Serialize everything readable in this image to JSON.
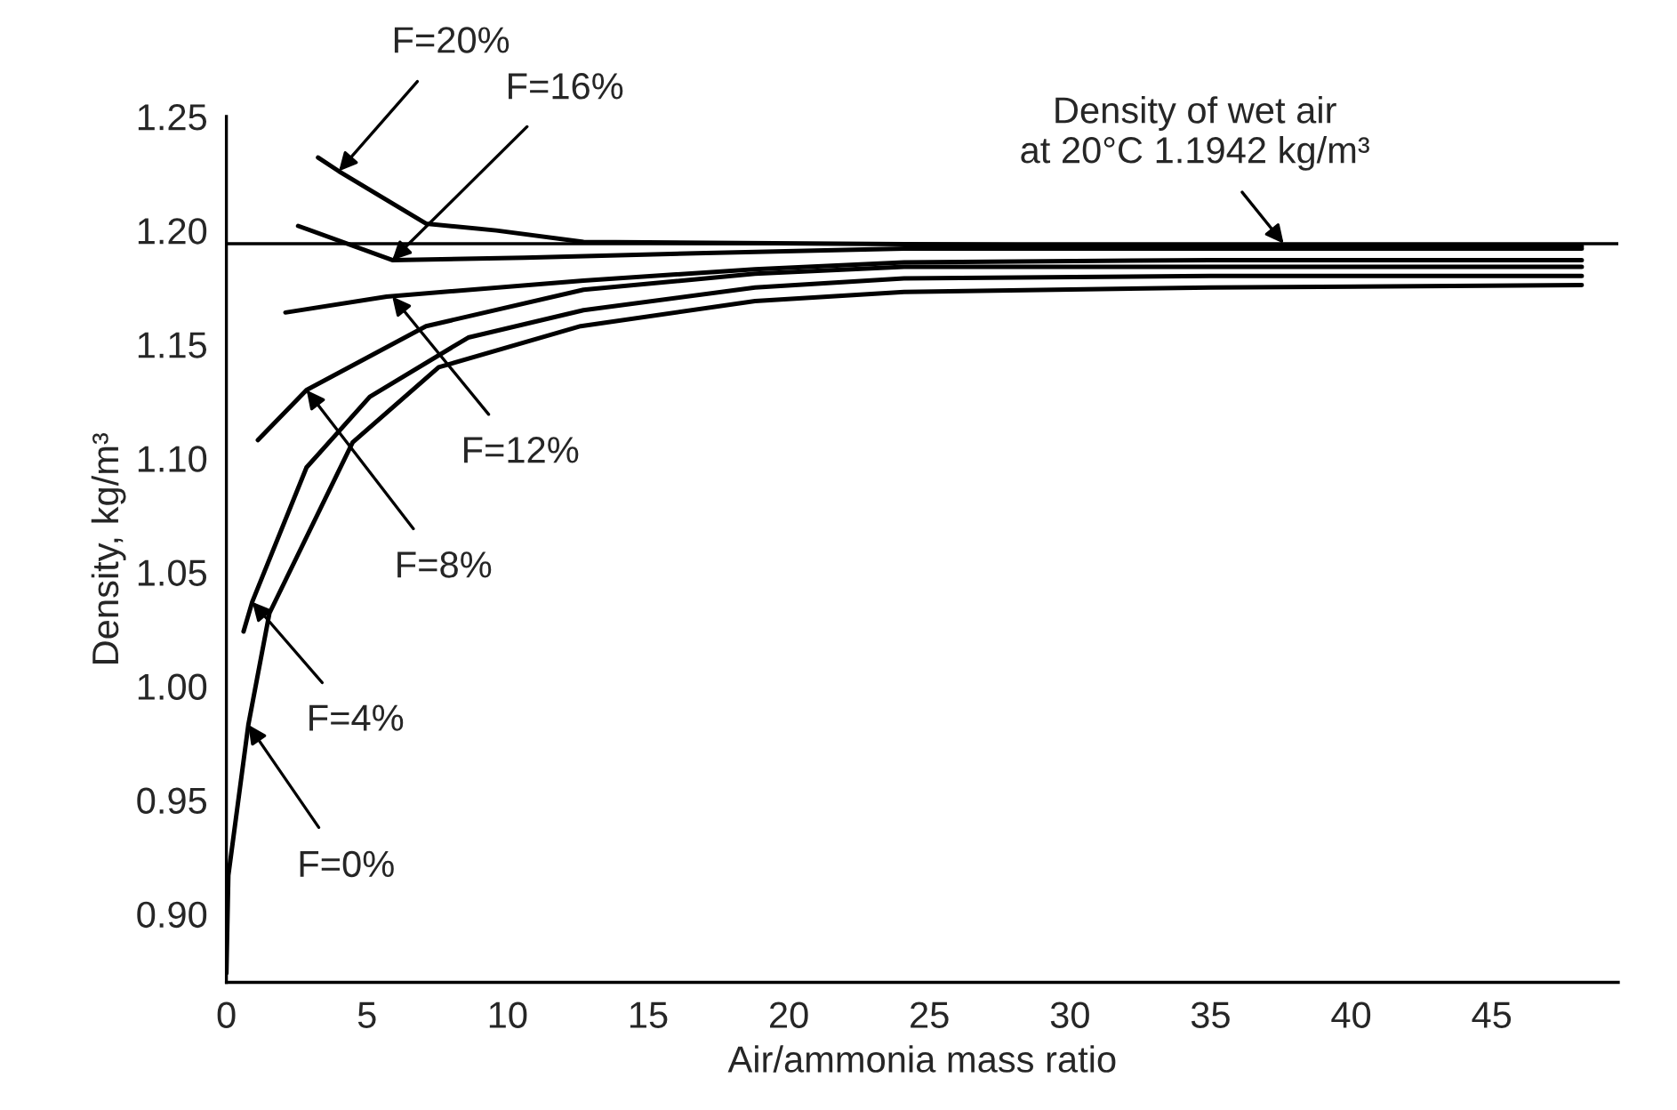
{
  "chart_data": {
    "type": "line",
    "xlabel": "Air/ammonia mass ratio",
    "ylabel": "Density, kg/m³",
    "xlim": [
      0,
      49.5
    ],
    "ylim": [
      0.87,
      1.25
    ],
    "xticks": [
      0,
      5,
      10,
      15,
      20,
      25,
      30,
      35,
      40,
      45
    ],
    "yticks": [
      {
        "value": 0.9,
        "label": "0.90"
      },
      {
        "value": 0.95,
        "label": "0.95"
      },
      {
        "value": 1.0,
        "label": "1.00"
      },
      {
        "value": 1.05,
        "label": "1.05"
      },
      {
        "value": 1.1,
        "label": "1.10"
      },
      {
        "value": 1.15,
        "label": "1.15"
      },
      {
        "value": 1.2,
        "label": "1.20"
      },
      {
        "value": 1.25,
        "label": "1.25"
      }
    ],
    "grid": false,
    "legend": false,
    "marker": "none",
    "line_style": "solid",
    "series": [
      {
        "color": "#000000",
        "x": [
          0,
          0.07,
          0.78,
          1.53,
          4.49,
          7.55,
          12.6,
          18.8,
          24.1,
          35,
          48.2
        ],
        "values": [
          0.874,
          0.917,
          0.983,
          1.032,
          1.107,
          1.14,
          1.158,
          1.169,
          1.173,
          1.175,
          1.176
        ]
      },
      {
        "color": "#000000",
        "x": [
          0.61,
          0.92,
          2.85,
          5.1,
          8.6,
          12.7,
          18.8,
          24.1,
          35,
          48.2
        ],
        "values": [
          1.024,
          1.037,
          1.096,
          1.127,
          1.153,
          1.165,
          1.175,
          1.179,
          1.18,
          1.18
        ]
      },
      {
        "color": "#000000",
        "x": [
          1.12,
          2.85,
          7.1,
          12.7,
          18.8,
          24.1,
          35,
          48.2
        ],
        "values": [
          1.108,
          1.13,
          1.158,
          1.174,
          1.181,
          1.184,
          1.184,
          1.184
        ]
      },
      {
        "color": "#000000",
        "x": [
          2.1,
          5.7,
          12.7,
          18.8,
          24.1,
          35,
          48.2
        ],
        "values": [
          1.164,
          1.171,
          1.178,
          1.183,
          1.186,
          1.187,
          1.187
        ]
      },
      {
        "color": "#000000",
        "x": [
          2.55,
          5.9,
          10.6,
          16.7,
          24.1,
          35,
          48.2
        ],
        "values": [
          1.202,
          1.187,
          1.188,
          1.19,
          1.192,
          1.192,
          1.192
        ]
      },
      {
        "color": "#000000",
        "x": [
          3.26,
          4.0,
          7.1,
          9.6,
          12.7,
          24.1,
          35,
          48.2
        ],
        "values": [
          1.232,
          1.226,
          1.203,
          1.2,
          1.195,
          1.194,
          1.193,
          1.193
        ]
      }
    ],
    "ref_lines": [
      {
        "axis": "y",
        "value": 1.1942,
        "color": "#000000"
      }
    ],
    "annotations": [
      {
        "text": "F=20%",
        "x": 4.0,
        "y": 1.226
      },
      {
        "text": "F=16%",
        "x": 5.9,
        "y": 1.187
      },
      {
        "text": "F=12%",
        "x": 5.9,
        "y": 1.171
      },
      {
        "text": "F=8%",
        "x": 2.85,
        "y": 1.13
      },
      {
        "text": "F=4%",
        "x": 0.92,
        "y": 1.037
      },
      {
        "text": "F=0%",
        "x": 0.78,
        "y": 0.983
      },
      {
        "text": "Density of wet air\nat 20°C 1.1942 kg/m³",
        "x": 37.6,
        "y": 1.1942
      }
    ]
  }
}
